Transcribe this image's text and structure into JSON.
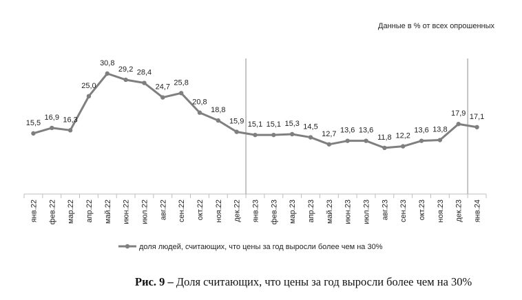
{
  "note": "Данные в % от всех опрошенных",
  "caption": {
    "prefix": "Рис. 9 –",
    "text": " Доля считающих, что цены за год выросли более чем на 30%"
  },
  "chart_data": {
    "type": "line",
    "title": "",
    "xlabel": "",
    "ylabel": "",
    "ylim": [
      0,
      35
    ],
    "grid": false,
    "legend_placement": "bottom",
    "line_color": "#7f7f7f",
    "categories": [
      "янв.22",
      "фев.22",
      "мар.22",
      "апр.22",
      "май.22",
      "июн.22",
      "июл.22",
      "авг.22",
      "сен.22",
      "окт.22",
      "ноя.22",
      "дек.22",
      "янв.23",
      "фев.23",
      "мар.23",
      "апр.23",
      "май.23",
      "июн.23",
      "июл.23",
      "авг.23",
      "сен.23",
      "окт.23",
      "ноя.23",
      "дек.23",
      "янв.24"
    ],
    "series": [
      {
        "name": "доля людей, считающих, что цены за год выросли более чем на 30%",
        "values": [
          15.5,
          16.9,
          16.3,
          25.0,
          30.8,
          29.2,
          28.4,
          24.7,
          25.8,
          20.8,
          18.8,
          15.9,
          15.1,
          15.1,
          15.3,
          14.5,
          12.7,
          13.6,
          13.6,
          11.8,
          12.2,
          13.6,
          13.8,
          17.9,
          17.1
        ]
      }
    ],
    "separators_after": [
      "дек.22",
      "дек.23"
    ]
  }
}
